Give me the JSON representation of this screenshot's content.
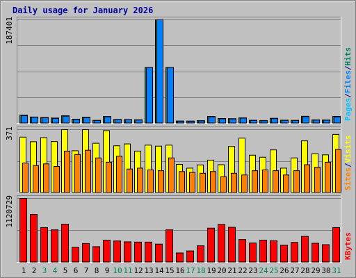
{
  "title": "Daily usage for January 2026",
  "colors": {
    "background": "#c0c0c0",
    "title": "#0000a0",
    "pages": "#00c0ff",
    "files": "#0080ff",
    "hits": "#00805f",
    "visits": "#ffff00",
    "sites": "#ff8000",
    "kbytes": "#ff0000",
    "weekend_label": "#00805f",
    "weekday_label": "#000000",
    "grid": "#808080"
  },
  "chart_data": [
    {
      "type": "bar",
      "name": "hits-files-pages",
      "ymax_label": "187401",
      "ylim": [
        0,
        187401
      ],
      "legend": [
        "Pages",
        "/",
        "Files",
        "/",
        "Hits"
      ],
      "grid": true,
      "categories": [
        "1",
        "2",
        "3",
        "4",
        "5",
        "6",
        "7",
        "8",
        "9",
        "10",
        "11",
        "12",
        "13",
        "14",
        "15",
        "16",
        "17",
        "18",
        "19",
        "20",
        "21",
        "22",
        "23",
        "24",
        "25",
        "26",
        "27",
        "28",
        "29",
        "30",
        "31"
      ],
      "series": [
        {
          "name": "Hits",
          "values": [
            15000,
            11500,
            10700,
            9700,
            13800,
            7600,
            11200,
            5500,
            12400,
            7100,
            6900,
            6600,
            100900,
            187401,
            100900,
            4300,
            4200,
            4900,
            12500,
            8800,
            8500,
            10000,
            5700,
            5200,
            9200,
            5800,
            5500,
            12800,
            6400,
            6200,
            12600
          ]
        },
        {
          "name": "Files",
          "values": [
            14000,
            11000,
            10000,
            9000,
            13000,
            7000,
            10500,
            5000,
            11800,
            6500,
            6300,
            6000,
            100900,
            187401,
            100900,
            3800,
            3700,
            4400,
            11800,
            8200,
            7900,
            9400,
            5200,
            4700,
            8600,
            5300,
            5000,
            12000,
            5800,
            5600,
            11800
          ]
        },
        {
          "name": "Pages",
          "values": [
            0,
            0,
            0,
            0,
            0,
            0,
            0,
            0,
            0,
            0,
            0,
            0,
            0,
            0,
            0,
            0,
            0,
            0,
            0,
            0,
            0,
            0,
            0,
            0,
            0,
            0,
            0,
            0,
            0,
            0,
            0
          ]
        }
      ]
    },
    {
      "type": "bar",
      "name": "visits-sites",
      "ymax_label": "371",
      "ylim": [
        0,
        371
      ],
      "legend": [
        "Sites",
        "/",
        "Visits"
      ],
      "grid": true,
      "categories": [
        "1",
        "2",
        "3",
        "4",
        "5",
        "6",
        "7",
        "8",
        "9",
        "10",
        "11",
        "12",
        "13",
        "14",
        "15",
        "16",
        "17",
        "18",
        "19",
        "20",
        "21",
        "22",
        "23",
        "24",
        "25",
        "26",
        "27",
        "28",
        "29",
        "30",
        "31"
      ],
      "series": [
        {
          "name": "Visits",
          "values": [
            327,
            300,
            324,
            301,
            371,
            247,
            371,
            291,
            365,
            276,
            287,
            245,
            280,
            274,
            280,
            167,
            145,
            164,
            192,
            165,
            272,
            321,
            221,
            209,
            252,
            145,
            205,
            305,
            230,
            223,
            343
          ]
        },
        {
          "name": "Sites",
          "values": [
            175,
            160,
            170,
            155,
            245,
            225,
            250,
            205,
            180,
            215,
            140,
            145,
            135,
            130,
            205,
            125,
            120,
            115,
            125,
            95,
            115,
            105,
            130,
            135,
            130,
            105,
            130,
            165,
            150,
            180,
            255
          ]
        }
      ]
    },
    {
      "type": "bar",
      "name": "kbytes",
      "ymax_label": "1120729",
      "ylim": [
        0,
        1120729
      ],
      "legend": [
        "KBytes"
      ],
      "grid": true,
      "categories": [
        "1",
        "2",
        "3",
        "4",
        "5",
        "6",
        "7",
        "8",
        "9",
        "10",
        "11",
        "12",
        "13",
        "14",
        "15",
        "16",
        "17",
        "18",
        "19",
        "20",
        "21",
        "22",
        "23",
        "24",
        "25",
        "26",
        "27",
        "28",
        "29",
        "30",
        "31"
      ],
      "series": [
        {
          "name": "KBytes",
          "values": [
            1120729,
            840000,
            610000,
            570000,
            670000,
            265000,
            330000,
            275000,
            390000,
            375000,
            360000,
            355000,
            355000,
            320000,
            570000,
            165000,
            200000,
            290000,
            600000,
            665000,
            615000,
            400000,
            340000,
            390000,
            380000,
            300000,
            350000,
            455000,
            335000,
            310000,
            610000
          ]
        }
      ]
    }
  ],
  "day_labels": [
    {
      "text": "1",
      "weekend": false
    },
    {
      "text": "2",
      "weekend": false
    },
    {
      "text": "3",
      "weekend": true
    },
    {
      "text": "4",
      "weekend": true
    },
    {
      "text": "5",
      "weekend": false
    },
    {
      "text": "6",
      "weekend": false
    },
    {
      "text": "7",
      "weekend": false
    },
    {
      "text": "8",
      "weekend": false
    },
    {
      "text": "9",
      "weekend": false
    },
    {
      "text": "10",
      "weekend": true
    },
    {
      "text": "11",
      "weekend": true
    },
    {
      "text": "12",
      "weekend": false
    },
    {
      "text": "13",
      "weekend": false
    },
    {
      "text": "14",
      "weekend": false
    },
    {
      "text": "15",
      "weekend": false
    },
    {
      "text": "16",
      "weekend": false
    },
    {
      "text": "17",
      "weekend": true
    },
    {
      "text": "18",
      "weekend": true
    },
    {
      "text": "19",
      "weekend": false
    },
    {
      "text": "20",
      "weekend": false
    },
    {
      "text": "21",
      "weekend": false
    },
    {
      "text": "22",
      "weekend": false
    },
    {
      "text": "23",
      "weekend": false
    },
    {
      "text": "24",
      "weekend": true
    },
    {
      "text": "25",
      "weekend": true
    },
    {
      "text": "26",
      "weekend": false
    },
    {
      "text": "27",
      "weekend": false
    },
    {
      "text": "28",
      "weekend": false
    },
    {
      "text": "29",
      "weekend": false
    },
    {
      "text": "30",
      "weekend": false
    },
    {
      "text": "31",
      "weekend": true
    }
  ]
}
